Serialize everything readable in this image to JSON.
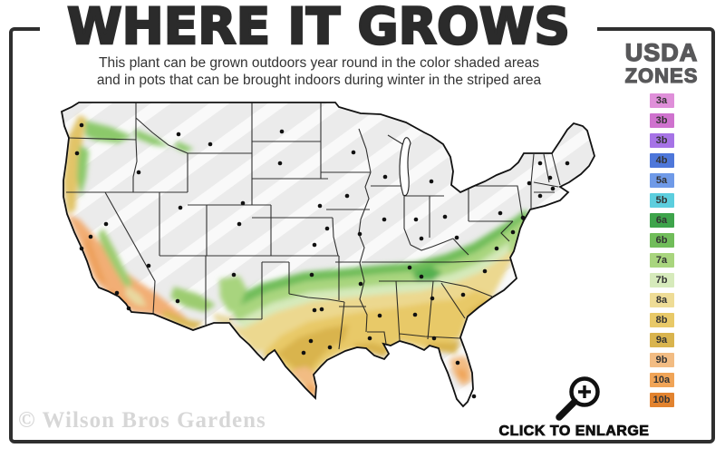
{
  "page": {
    "background": "#ffffff",
    "frame_color": "#2f2f2f"
  },
  "header": {
    "title": "WHERE IT GROWS",
    "subtitle_line1": "This plant can be grown outdoors year round in the color shaded areas",
    "subtitle_line2": "and in pots that can be brought indoors during winter in the striped area"
  },
  "legend": {
    "title_line1": "USDA",
    "title_line2": "ZONES",
    "title_color": "#58585a",
    "zones": [
      {
        "label": "3a",
        "color": "#df8fd9"
      },
      {
        "label": "3b",
        "color": "#cf72ce"
      },
      {
        "label": "3b",
        "color": "#a673e6"
      },
      {
        "label": "4b",
        "color": "#4e77da"
      },
      {
        "label": "5a",
        "color": "#6f9ae8"
      },
      {
        "label": "5b",
        "color": "#5ccede"
      },
      {
        "label": "6a",
        "color": "#3ea44b"
      },
      {
        "label": "6b",
        "color": "#71bd5a"
      },
      {
        "label": "7a",
        "color": "#a9d57e"
      },
      {
        "label": "7b",
        "color": "#d6eabb"
      },
      {
        "label": "8a",
        "color": "#eedc96"
      },
      {
        "label": "8b",
        "color": "#e8c968"
      },
      {
        "label": "9a",
        "color": "#d9b44e"
      },
      {
        "label": "9b",
        "color": "#f2bc83"
      },
      {
        "label": "10a",
        "color": "#f0a457"
      },
      {
        "label": "10b",
        "color": "#e2832f"
      }
    ]
  },
  "map": {
    "name": "usda-zones-us-map",
    "striped_area_fill": "#ebebeb",
    "stripe_color": "#f9f9f9",
    "outline_color": "#111111",
    "city_marker_color": "#111111"
  },
  "footer": {
    "watermark": "© Wilson Bros Gardens",
    "enlarge_label": "CLICK TO ENLARGE",
    "enlarge_icon": "magnifier-plus-icon"
  }
}
